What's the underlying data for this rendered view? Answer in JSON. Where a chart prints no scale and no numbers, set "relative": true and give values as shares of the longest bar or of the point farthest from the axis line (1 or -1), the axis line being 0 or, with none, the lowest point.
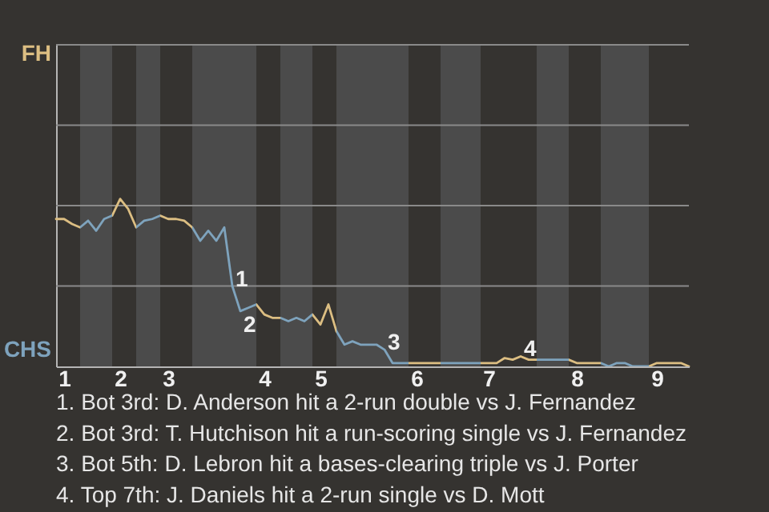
{
  "chart_data": {
    "type": "line",
    "relative": true,
    "line_style": "solid",
    "ref_lines": [
      {
        "axis": "y",
        "value": 0.48,
        "color": "#8a8a8a"
      },
      {
        "axis": "y",
        "value": 0.96,
        "color": "#8a8a8a"
      },
      {
        "axis": "y",
        "value": 1.44,
        "color": "#8a8a8a"
      },
      {
        "axis": "y",
        "value": 1.92,
        "color": "#8a8a8a"
      }
    ],
    "categories": [
      null,
      "1",
      null,
      null,
      null,
      null,
      null,
      null,
      "2",
      null,
      null,
      null,
      null,
      null,
      "3",
      null,
      null,
      null,
      null,
      null,
      null,
      null,
      null,
      null,
      null,
      null,
      "4",
      null,
      null,
      null,
      null,
      null,
      null,
      "5",
      null,
      null,
      null,
      null,
      null,
      null,
      null,
      null,
      null,
      null,
      null,
      "6",
      null,
      null,
      null,
      null,
      null,
      null,
      null,
      null,
      "7",
      null,
      null,
      null,
      null,
      null,
      null,
      null,
      null,
      null,
      null,
      "8",
      null,
      null,
      null,
      null,
      null,
      null,
      null,
      null,
      null,
      "9",
      null,
      null,
      null,
      null
    ],
    "values": [
      0.88,
      0.88,
      0.85,
      0.83,
      0.87,
      0.81,
      0.88,
      0.9,
      1,
      0.94,
      0.83,
      0.87,
      0.88,
      0.9,
      0.88,
      0.88,
      0.87,
      0.83,
      0.75,
      0.81,
      0.75,
      0.83,
      0.48,
      0.33,
      0.35,
      0.37,
      0.31,
      0.29,
      0.29,
      0.27,
      0.29,
      0.27,
      0.31,
      0.25,
      0.37,
      0.21,
      0.13,
      0.15,
      0.13,
      0.13,
      0.13,
      0.1,
      0.02,
      0.02,
      0.02,
      0.02,
      0.02,
      0.02,
      0.02,
      0.02,
      0.02,
      0.02,
      0.02,
      0.02,
      0.02,
      0.02,
      0.05,
      0.04,
      0.06,
      0.04,
      0.04,
      0.04,
      0.04,
      0.04,
      0.04,
      0.02,
      0.02,
      0.02,
      0.02,
      0,
      0.02,
      0.02,
      0,
      0,
      0,
      0.02,
      0.02,
      0.02,
      0.02,
      0
    ],
    "colors": [
      "#dcbe82",
      "#dcbe82",
      "#dcbe82",
      "#dcbe82",
      "#7ea3bd",
      "#7ea3bd",
      "#7ea3bd",
      "#7ea3bd",
      "#dcbe82",
      "#dcbe82",
      "#dcbe82",
      "#7ea3bd",
      "#7ea3bd",
      "#7ea3bd",
      "#dcbe82",
      "#dcbe82",
      "#dcbe82",
      "#dcbe82",
      "#7ea3bd",
      "#7ea3bd",
      "#7ea3bd",
      "#7ea3bd",
      "#7ea3bd",
      "#7ea3bd",
      "#7ea3bd",
      "#7ea3bd",
      "#dcbe82",
      "#dcbe82",
      "#dcbe82",
      "#7ea3bd",
      "#7ea3bd",
      "#7ea3bd",
      "#7ea3bd",
      "#dcbe82",
      "#dcbe82",
      "#dcbe82",
      "#7ea3bd",
      "#7ea3bd",
      "#7ea3bd",
      "#7ea3bd",
      "#7ea3bd",
      "#7ea3bd",
      "#7ea3bd",
      "#7ea3bd",
      "#7ea3bd",
      "#dcbe82",
      "#dcbe82",
      "#dcbe82",
      "#dcbe82",
      "#7ea3bd",
      "#7ea3bd",
      "#7ea3bd",
      "#7ea3bd",
      "#7ea3bd",
      "#dcbe82",
      "#dcbe82",
      "#dcbe82",
      "#dcbe82",
      "#dcbe82",
      "#dcbe82",
      "#dcbe82",
      "#7ea3bd",
      "#7ea3bd",
      "#7ea3bd",
      "#7ea3bd",
      "#dcbe82",
      "#dcbe82",
      "#dcbe82",
      "#dcbe82",
      "#7ea3bd",
      "#7ea3bd",
      "#7ea3bd",
      "#7ea3bd",
      "#7ea3bd",
      "#7ea3bd",
      "#dcbe82",
      "#dcbe82",
      "#dcbe82",
      "#dcbe82",
      "#dcbe82"
    ],
    "annotations": [
      "FH",
      "CHS",
      {
        "text": "1",
        "y": 0.48
      },
      {
        "text": "2",
        "y": 0.33
      },
      {
        "text": "3",
        "y": 0.1
      },
      {
        "text": "4",
        "y": 0.06
      },
      "1. Bot 3rd: D. Anderson hit a 2-run double vs J. Fernandez",
      "2. Bot 3rd: T. Hutchison hit a run-scoring single vs J. Fernandez",
      "3. Bot 5th: D. Lebron hit a bases-clearing triple vs J. Porter",
      "4. Top 7th: J. Daniels hit a 2-run single vs D. Mott"
    ]
  }
}
